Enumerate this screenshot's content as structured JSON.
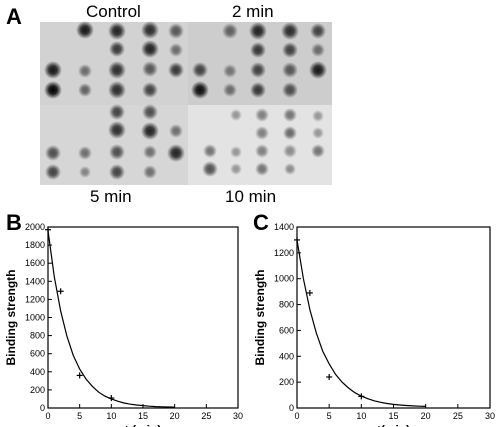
{
  "panels": {
    "a": {
      "letter": "A",
      "arrays": [
        {
          "label": "Control"
        },
        {
          "label": "2 min"
        },
        {
          "label": "5 min"
        },
        {
          "label": "10 min"
        }
      ]
    },
    "b": {
      "letter": "B"
    },
    "c": {
      "letter": "C"
    }
  },
  "chart_data": [
    {
      "type": "scatter",
      "xlabel": "t (min)",
      "ylabel": "Binding strength",
      "xlim": [
        0,
        30
      ],
      "ylim": [
        0,
        2000
      ],
      "xticks": [
        0,
        5,
        10,
        15,
        20,
        25,
        30
      ],
      "yticks": [
        0,
        200,
        400,
        600,
        800,
        1000,
        1200,
        1400,
        1600,
        1800,
        2000
      ],
      "points": {
        "x": [
          0,
          2,
          5,
          10
        ],
        "y": [
          1970,
          1290,
          360,
          110
        ]
      },
      "fit": {
        "x": [
          0,
          1,
          2,
          3,
          4,
          5,
          6,
          7,
          8,
          9,
          10,
          11,
          12,
          13,
          14,
          15,
          16,
          17,
          18,
          19,
          20
        ],
        "y": [
          1960,
          1450,
          1070,
          790,
          580,
          430,
          320,
          240,
          175,
          130,
          100,
          75,
          55,
          42,
          33,
          26,
          20,
          16,
          13,
          11,
          10
        ]
      }
    },
    {
      "type": "scatter",
      "xlabel": "t(min)",
      "ylabel": "Binding strength",
      "xlim": [
        0,
        30
      ],
      "ylim": [
        0,
        1400
      ],
      "xticks": [
        0,
        5,
        10,
        15,
        20,
        25,
        30
      ],
      "yticks": [
        0,
        200,
        400,
        600,
        800,
        1000,
        1200,
        1400
      ],
      "points": {
        "x": [
          0,
          2,
          5,
          10
        ],
        "y": [
          1300,
          890,
          240,
          90
        ]
      },
      "fit": {
        "x": [
          0,
          1,
          2,
          3,
          4,
          5,
          6,
          7,
          8,
          9,
          10,
          11,
          12,
          13,
          14,
          15,
          16,
          17,
          18,
          19,
          20
        ],
        "y": [
          1300,
          1000,
          760,
          580,
          440,
          340,
          260,
          200,
          155,
          118,
          92,
          72,
          56,
          44,
          35,
          28,
          23,
          19,
          16,
          14,
          12
        ]
      }
    }
  ]
}
